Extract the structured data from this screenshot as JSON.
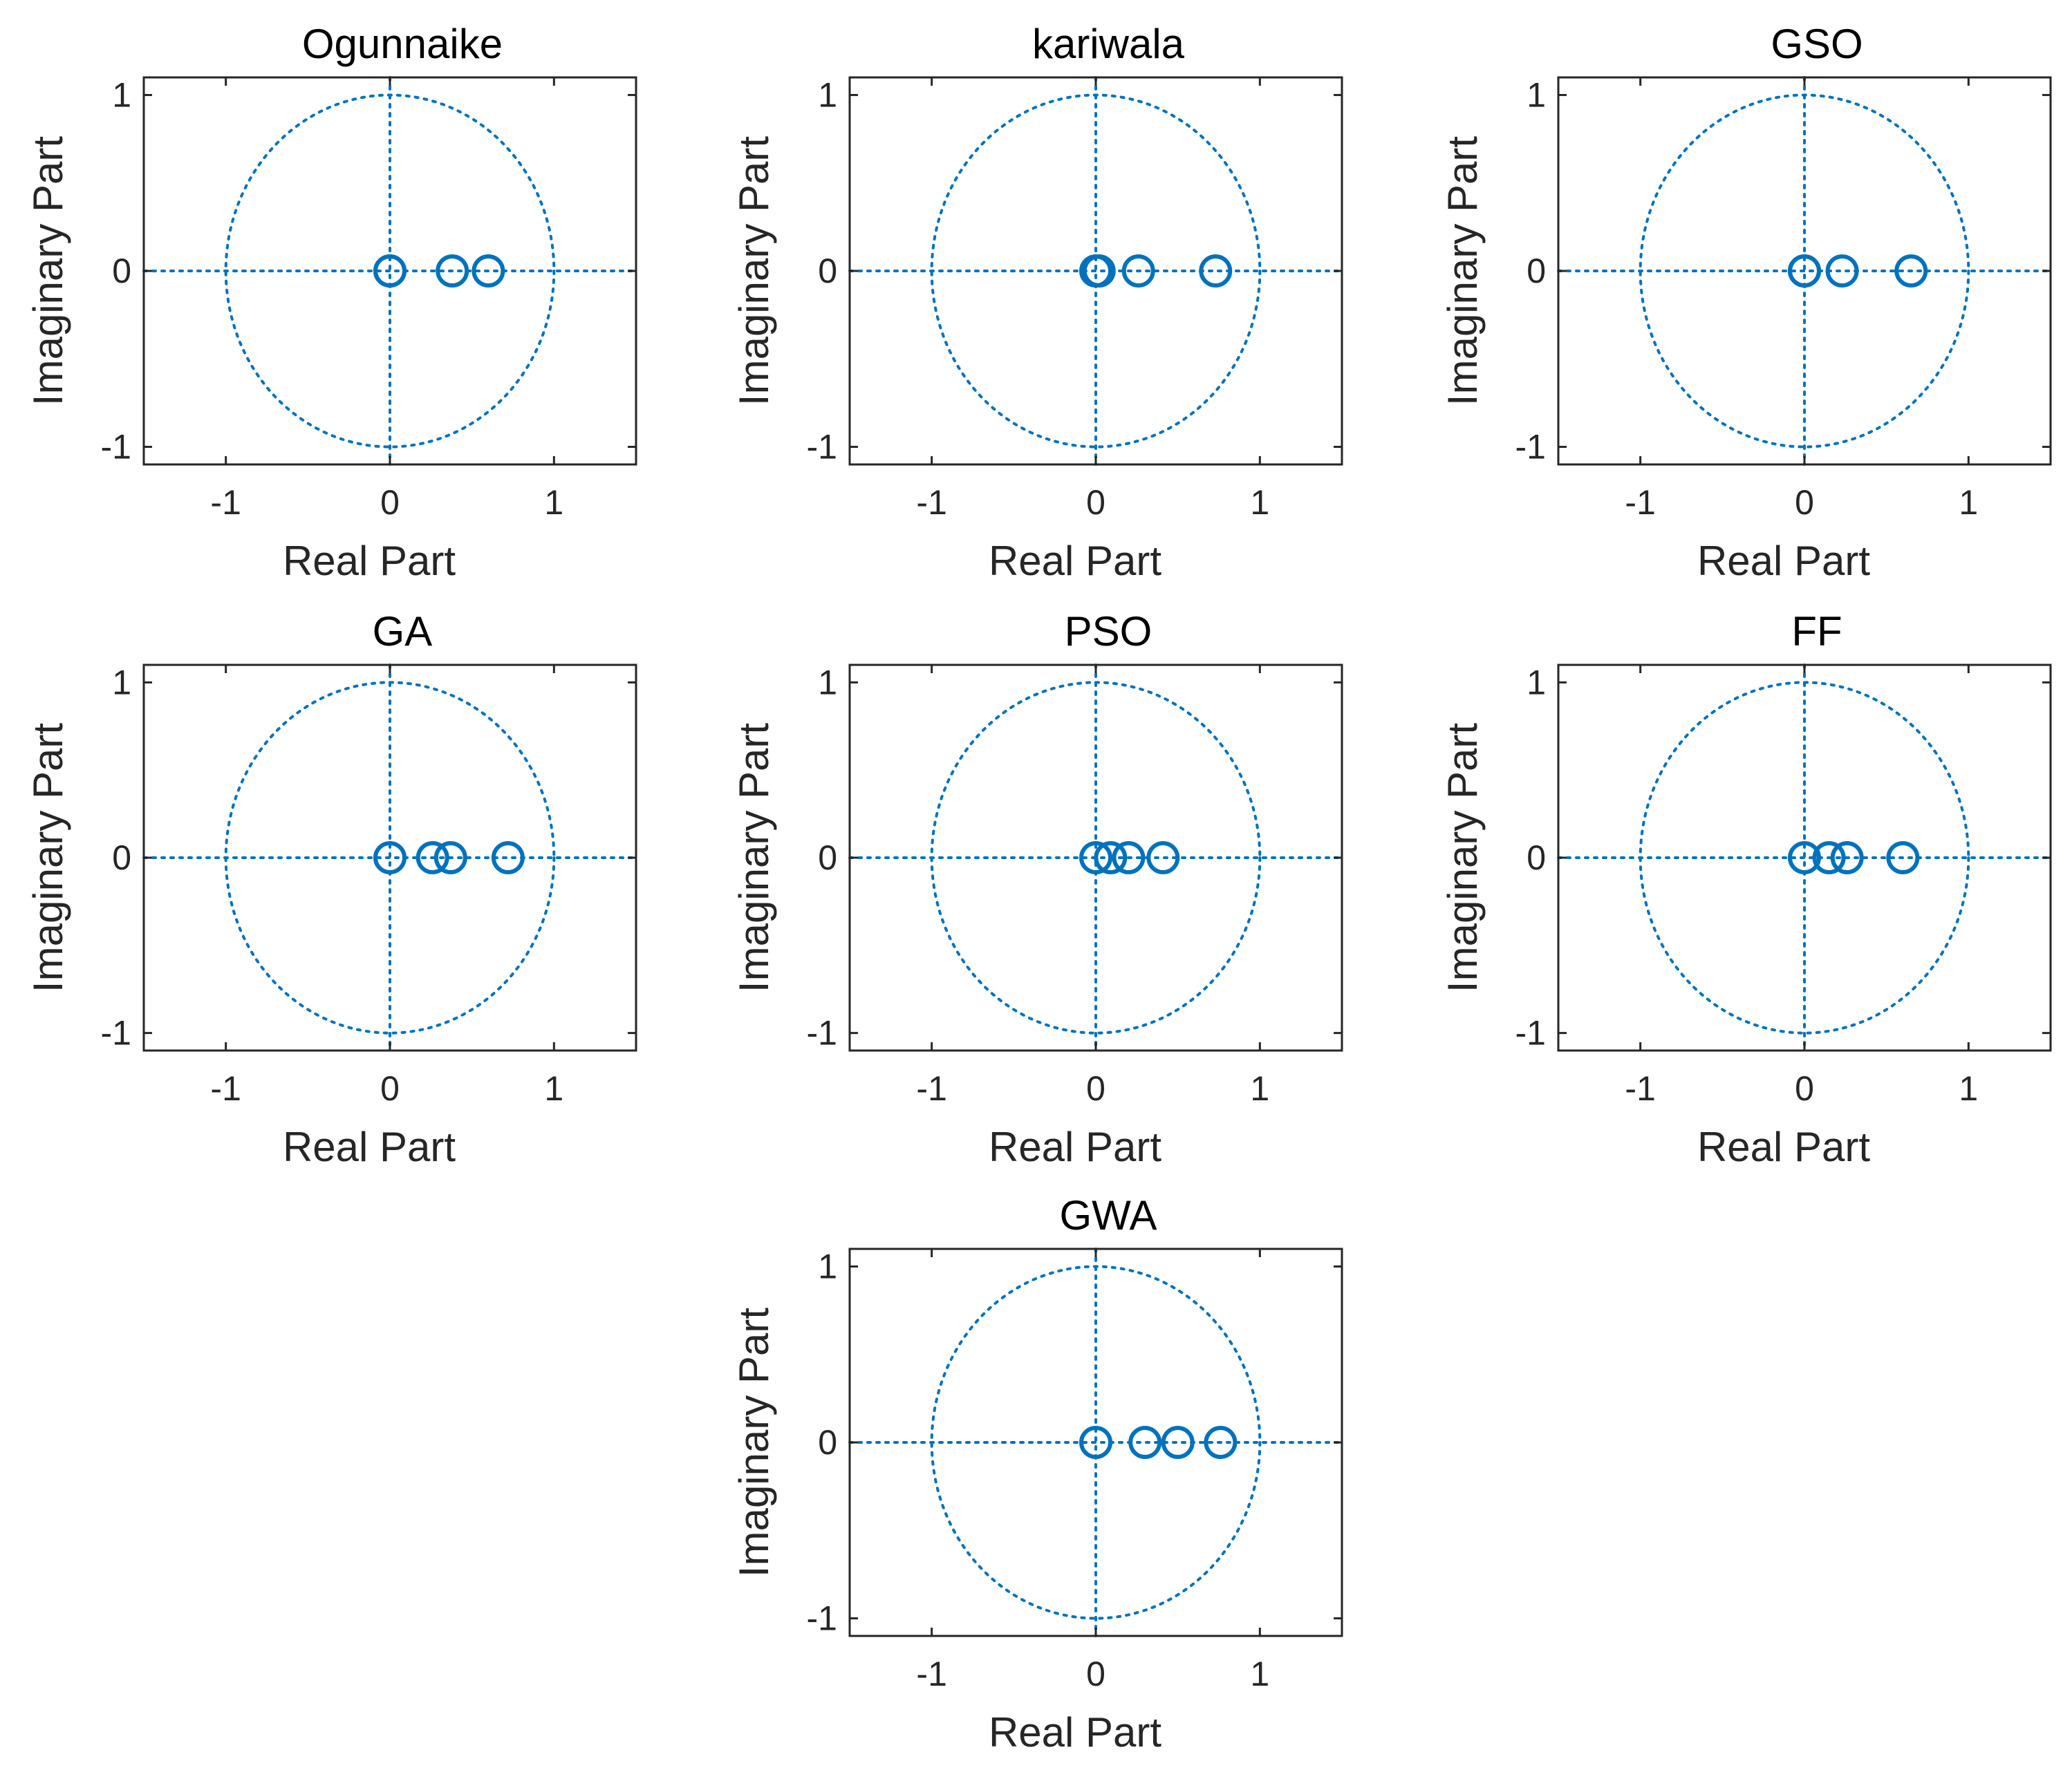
{
  "chart_data": [
    {
      "type": "scatter",
      "title": "Ogunnaike",
      "xlabel": "Real Part",
      "ylabel": "Imaginary Part",
      "xlim": [
        -1.5,
        1.5
      ],
      "ylim": [
        -1.1,
        1.1
      ],
      "xticks": [
        "-1",
        "0",
        "1"
      ],
      "yticks": [
        "-1",
        "0",
        "1"
      ],
      "unit_circle": true,
      "grid": false,
      "marker": "o",
      "color": "#0072BD",
      "points": [
        {
          "x": 0.0,
          "y": 0
        },
        {
          "x": 0.0,
          "y": 0
        },
        {
          "x": 0.38,
          "y": 0
        },
        {
          "x": 0.6,
          "y": 0
        }
      ]
    },
    {
      "type": "scatter",
      "title": "kariwala",
      "xlabel": "Real Part",
      "ylabel": "Imaginary Part",
      "xlim": [
        -1.5,
        1.5
      ],
      "ylim": [
        -1.1,
        1.1
      ],
      "xticks": [
        "-1",
        "0",
        "1"
      ],
      "yticks": [
        "-1",
        "0",
        "1"
      ],
      "unit_circle": true,
      "grid": false,
      "marker": "o",
      "color": "#0072BD",
      "points": [
        {
          "x": 0.0,
          "y": 0
        },
        {
          "x": 0.02,
          "y": 0
        },
        {
          "x": 0.26,
          "y": 0
        },
        {
          "x": 0.73,
          "y": 0
        }
      ]
    },
    {
      "type": "scatter",
      "title": "GSO",
      "xlabel": "Real Part",
      "ylabel": "Imaginary Part",
      "xlim": [
        -1.5,
        1.5
      ],
      "ylim": [
        -1.1,
        1.1
      ],
      "xticks": [
        "-1",
        "0",
        "1"
      ],
      "yticks": [
        "-1",
        "0",
        "1"
      ],
      "unit_circle": true,
      "grid": false,
      "marker": "o",
      "color": "#0072BD",
      "points": [
        {
          "x": 0.0,
          "y": 0
        },
        {
          "x": 0.0,
          "y": 0
        },
        {
          "x": 0.23,
          "y": 0
        },
        {
          "x": 0.65,
          "y": 0
        }
      ]
    },
    {
      "type": "scatter",
      "title": "GA",
      "xlabel": "Real Part",
      "ylabel": "Imaginary Part",
      "xlim": [
        -1.5,
        1.5
      ],
      "ylim": [
        -1.1,
        1.1
      ],
      "xticks": [
        "-1",
        "0",
        "1"
      ],
      "yticks": [
        "-1",
        "0",
        "1"
      ],
      "unit_circle": true,
      "grid": false,
      "marker": "o",
      "color": "#0072BD",
      "points": [
        {
          "x": 0.0,
          "y": 0
        },
        {
          "x": 0.26,
          "y": 0
        },
        {
          "x": 0.37,
          "y": 0
        },
        {
          "x": 0.72,
          "y": 0
        }
      ]
    },
    {
      "type": "scatter",
      "title": "PSO",
      "xlabel": "Real Part",
      "ylabel": "Imaginary Part",
      "xlim": [
        -1.5,
        1.5
      ],
      "ylim": [
        -1.1,
        1.1
      ],
      "xticks": [
        "-1",
        "0",
        "1"
      ],
      "yticks": [
        "-1",
        "0",
        "1"
      ],
      "unit_circle": true,
      "grid": false,
      "marker": "o",
      "color": "#0072BD",
      "points": [
        {
          "x": 0.0,
          "y": 0
        },
        {
          "x": 0.09,
          "y": 0
        },
        {
          "x": 0.2,
          "y": 0
        },
        {
          "x": 0.41,
          "y": 0
        }
      ]
    },
    {
      "type": "scatter",
      "title": "FF",
      "xlabel": "Real Part",
      "ylabel": "Imaginary Part",
      "xlim": [
        -1.5,
        1.5
      ],
      "ylim": [
        -1.1,
        1.1
      ],
      "xticks": [
        "-1",
        "0",
        "1"
      ],
      "yticks": [
        "-1",
        "0",
        "1"
      ],
      "unit_circle": true,
      "grid": false,
      "marker": "o",
      "color": "#0072BD",
      "points": [
        {
          "x": 0.0,
          "y": 0
        },
        {
          "x": 0.15,
          "y": 0
        },
        {
          "x": 0.26,
          "y": 0
        },
        {
          "x": 0.6,
          "y": 0
        }
      ]
    },
    {
      "type": "scatter",
      "title": "GWA",
      "xlabel": "Real Part",
      "ylabel": "Imaginary Part",
      "xlim": [
        -1.5,
        1.5
      ],
      "ylim": [
        -1.1,
        1.1
      ],
      "xticks": [
        "-1",
        "0",
        "1"
      ],
      "yticks": [
        "-1",
        "0",
        "1"
      ],
      "unit_circle": true,
      "grid": false,
      "marker": "o",
      "color": "#0072BD",
      "points": [
        {
          "x": 0.0,
          "y": 0
        },
        {
          "x": 0.3,
          "y": 0
        },
        {
          "x": 0.5,
          "y": 0
        },
        {
          "x": 0.76,
          "y": 0
        }
      ]
    }
  ]
}
